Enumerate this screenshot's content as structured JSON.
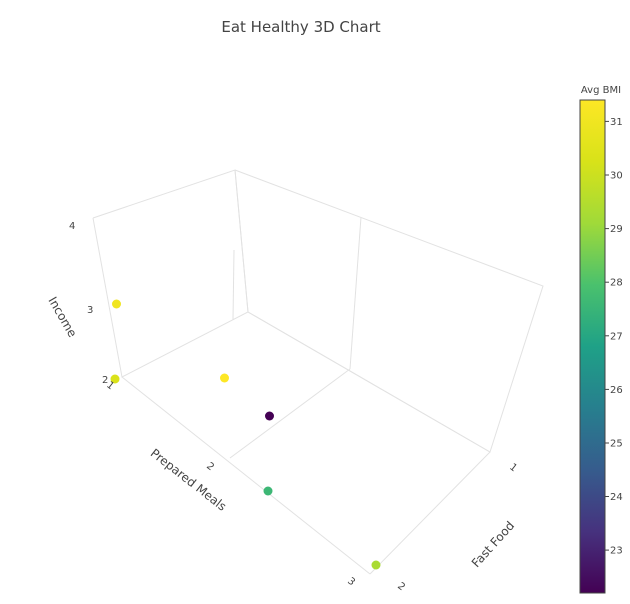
{
  "chart_data": {
    "type": "scatter3d",
    "title": "Eat Healthy 3D Chart",
    "x_axis": {
      "label": "Fast Food",
      "ticks": [
        "1",
        "2"
      ]
    },
    "y_axis": {
      "label": "Prepared Meals",
      "ticks": [
        "1",
        "2",
        "3"
      ]
    },
    "z_axis": {
      "label": "Income",
      "ticks": [
        "2",
        "3",
        "4"
      ]
    },
    "colorbar": {
      "title": "Avg BMI",
      "colorscale": "Viridis",
      "range": [
        22.2,
        31.4
      ],
      "ticks": [
        23,
        24,
        25,
        26,
        27,
        28,
        29,
        30,
        31
      ]
    },
    "points": [
      {
        "fast_food": 1,
        "prepared_meals": 1,
        "income": 3,
        "bmi": 31.0
      },
      {
        "fast_food": 1,
        "prepared_meals": 1,
        "income": 2,
        "bmi": 30.3
      },
      {
        "fast_food": 1,
        "prepared_meals": 2,
        "income": 3,
        "bmi": 31.4
      },
      {
        "fast_food": 2,
        "prepared_meals": 1,
        "income": 3,
        "bmi": 22.2
      },
      {
        "fast_food": 2,
        "prepared_meals": 2,
        "income": 2,
        "bmi": 29.3
      },
      {
        "fast_food": 2,
        "prepared_meals": 1,
        "income": 2,
        "bmi": 27.6
      }
    ]
  }
}
